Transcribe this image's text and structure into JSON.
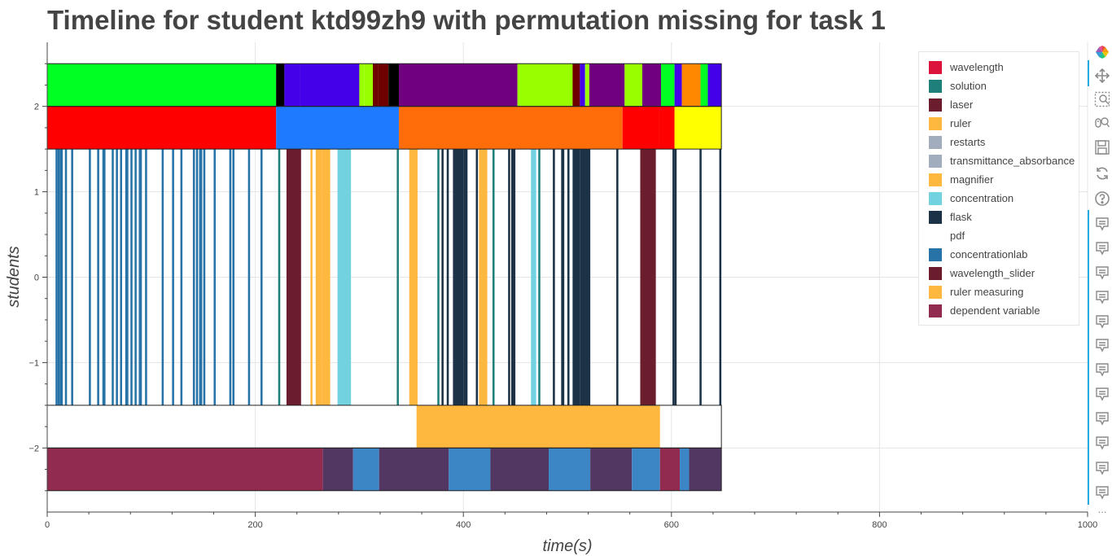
{
  "title": "Timeline for student ktd99zh9 with permutation missing for task 1",
  "chart_data": {
    "type": "timeline",
    "title": "Timeline for student ktd99zh9 with permutation missing for task 1",
    "xlabel": "time(s)",
    "ylabel": "students",
    "xlim": [
      0,
      1000
    ],
    "ylim": [
      -2.75,
      2.75
    ],
    "xticks": [
      0,
      200,
      400,
      600,
      800,
      1000
    ],
    "yticks": [
      -2,
      -1,
      0,
      1,
      2
    ],
    "ytick_labels": [
      "−2",
      "−1",
      "0",
      "1",
      "2"
    ],
    "grid": true,
    "legend_position": "top-right",
    "legend": [
      {
        "name": "wavelength",
        "color": "#dc143c"
      },
      {
        "name": "solution",
        "color": "#1f7f7a"
      },
      {
        "name": "laser",
        "color": "#6b1d2e"
      },
      {
        "name": "ruler",
        "color": "#ffb83f"
      },
      {
        "name": "restarts",
        "color": "#a1adbc"
      },
      {
        "name": "transmittance_absorbance",
        "color": "#a1adbc"
      },
      {
        "name": "magnifier",
        "color": "#ffb83f"
      },
      {
        "name": "concentration",
        "color": "#72d2e0"
      },
      {
        "name": "flask",
        "color": "#1c3246"
      },
      {
        "name": "pdf",
        "color": "#ffffff"
      },
      {
        "name": "concentrationlab",
        "color": "#2773a8"
      },
      {
        "name": "wavelength_slider",
        "color": "#6b1d2e"
      },
      {
        "name": "ruler measuring",
        "color": "#ffb83f"
      },
      {
        "name": "dependent variable",
        "color": "#922b50"
      }
    ],
    "rows": [
      {
        "y": 2.25,
        "segments": [
          [
            0,
            220,
            "#00ff22"
          ],
          [
            220,
            228,
            "#000000"
          ],
          [
            228,
            243,
            "#4400e8"
          ],
          [
            243,
            300,
            "#4400e8"
          ],
          [
            300,
            305,
            "#99ff00"
          ],
          [
            305,
            313,
            "#99ff00"
          ],
          [
            313,
            318,
            "#6f0000"
          ],
          [
            318,
            328,
            "#6f0000"
          ],
          [
            328,
            338,
            "#000000"
          ],
          [
            338,
            452,
            "#700080"
          ],
          [
            452,
            505,
            "#99ff00"
          ],
          [
            505,
            512,
            "#6f0000"
          ],
          [
            512,
            517,
            "#4400e8"
          ],
          [
            517,
            521,
            "#99ff00"
          ],
          [
            521,
            555,
            "#700080"
          ],
          [
            555,
            572,
            "#99ff00"
          ],
          [
            572,
            590,
            "#700080"
          ],
          [
            590,
            603,
            "#00ff22"
          ],
          [
            603,
            610,
            "#4400e8"
          ],
          [
            610,
            628,
            "#ff8800"
          ],
          [
            628,
            635,
            "#00ff22"
          ],
          [
            635,
            648,
            "#4400e8"
          ]
        ]
      },
      {
        "y": 1.75,
        "segments": [
          [
            0,
            220,
            "#ff0000"
          ],
          [
            220,
            338,
            "#1e7bff"
          ],
          [
            338,
            553,
            "#ff6c0a"
          ],
          [
            553,
            588,
            "#ff0000"
          ],
          [
            588,
            603,
            "#ff0000"
          ],
          [
            603,
            648,
            "#ffff00"
          ]
        ]
      },
      {
        "y": 0,
        "segments": [
          [
            8,
            10,
            "#2773a8"
          ],
          [
            10,
            12,
            "#2773a8"
          ],
          [
            12,
            15,
            "#2773a8"
          ],
          [
            17,
            19,
            "#2773a8"
          ],
          [
            23,
            25,
            "#2773a8"
          ],
          [
            40,
            42,
            "#2773a8"
          ],
          [
            48,
            50,
            "#2773a8"
          ],
          [
            53,
            56,
            "#2773a8"
          ],
          [
            62,
            64,
            "#2773a8"
          ],
          [
            66,
            68,
            "#2773a8"
          ],
          [
            70,
            72,
            "#2773a8"
          ],
          [
            75,
            78,
            "#2773a8"
          ],
          [
            80,
            82,
            "#2773a8"
          ],
          [
            84,
            86,
            "#2773a8"
          ],
          [
            88,
            91,
            "#2773a8"
          ],
          [
            94,
            96,
            "#2773a8"
          ],
          [
            110,
            112,
            "#2773a8"
          ],
          [
            120,
            122,
            "#2773a8"
          ],
          [
            128,
            130,
            "#2773a8"
          ],
          [
            140,
            142,
            "#2773a8"
          ],
          [
            143,
            145,
            "#2773a8"
          ],
          [
            146,
            149,
            "#2773a8"
          ],
          [
            150,
            152,
            "#2773a8"
          ],
          [
            160,
            162,
            "#2773a8"
          ],
          [
            175,
            177,
            "#2773a8"
          ],
          [
            178,
            180,
            "#2773a8"
          ],
          [
            193,
            195,
            "#2773a8"
          ],
          [
            205,
            207,
            "#2773a8"
          ],
          [
            222,
            224,
            "#1f7f7a"
          ],
          [
            230,
            244,
            "#6b1d2e"
          ],
          [
            253,
            255,
            "#ffb83f"
          ],
          [
            258,
            264,
            "#ffb83f"
          ],
          [
            264,
            272,
            "#ffb83f"
          ],
          [
            279,
            292,
            "#72d2e0"
          ],
          [
            336,
            338,
            "#1f7f7a"
          ],
          [
            348,
            356,
            "#ffb83f"
          ],
          [
            375,
            377,
            "#1f7f7a"
          ],
          [
            379,
            381,
            "#1c3246"
          ],
          [
            384,
            386,
            "#1c3246"
          ],
          [
            390,
            400,
            "#1c3246"
          ],
          [
            400,
            404,
            "#1c3246"
          ],
          [
            412,
            414,
            "#1c3246"
          ],
          [
            415,
            423,
            "#ffb83f"
          ],
          [
            428,
            430,
            "#1f7f7a"
          ],
          [
            443,
            445,
            "#1c3246"
          ],
          [
            446,
            450,
            "#1c3246"
          ],
          [
            465,
            470,
            "#72d2e0"
          ],
          [
            472,
            474,
            "#1f7f7a"
          ],
          [
            486,
            488,
            "#1c3246"
          ],
          [
            494,
            497,
            "#1c3246"
          ],
          [
            500,
            502,
            "#1c3246"
          ],
          [
            505,
            512,
            "#1c3246"
          ],
          [
            512,
            522,
            "#1c3246"
          ],
          [
            547,
            549,
            "#1c3246"
          ],
          [
            570,
            585,
            "#6b1d2e"
          ],
          [
            601,
            603,
            "#1c3246"
          ],
          [
            603,
            605,
            "#1c3246"
          ],
          [
            627,
            629,
            "#1c3246"
          ],
          [
            646,
            648,
            "#1c3246"
          ]
        ]
      },
      {
        "y": -1.75,
        "segments": [
          [
            355,
            589,
            "#ffb83f"
          ]
        ]
      },
      {
        "y": -2.25,
        "segments": [
          [
            0,
            265,
            "#922b50"
          ],
          [
            265,
            294,
            "#523762"
          ],
          [
            294,
            319,
            "#3d86c6"
          ],
          [
            319,
            386,
            "#523762"
          ],
          [
            386,
            426,
            "#3d86c6"
          ],
          [
            426,
            482,
            "#523762"
          ],
          [
            482,
            522,
            "#3d86c6"
          ],
          [
            522,
            562,
            "#523762"
          ],
          [
            562,
            589,
            "#3d86c6"
          ],
          [
            589,
            608,
            "#922b50"
          ],
          [
            608,
            617,
            "#3d86c6"
          ],
          [
            617,
            648,
            "#523762"
          ]
        ]
      }
    ]
  },
  "toolbar": {
    "tools": [
      "bokeh-logo-icon",
      "pan-icon",
      "box-zoom-icon",
      "wheel-zoom-icon",
      "save-icon",
      "reset-icon",
      "help-icon",
      "hover-icon",
      "hover-icon",
      "hover-icon",
      "hover-icon",
      "hover-icon",
      "hover-icon",
      "hover-icon",
      "hover-icon",
      "hover-icon",
      "hover-icon",
      "hover-icon",
      "hover-icon",
      "more-icon"
    ],
    "more_label": "..."
  }
}
